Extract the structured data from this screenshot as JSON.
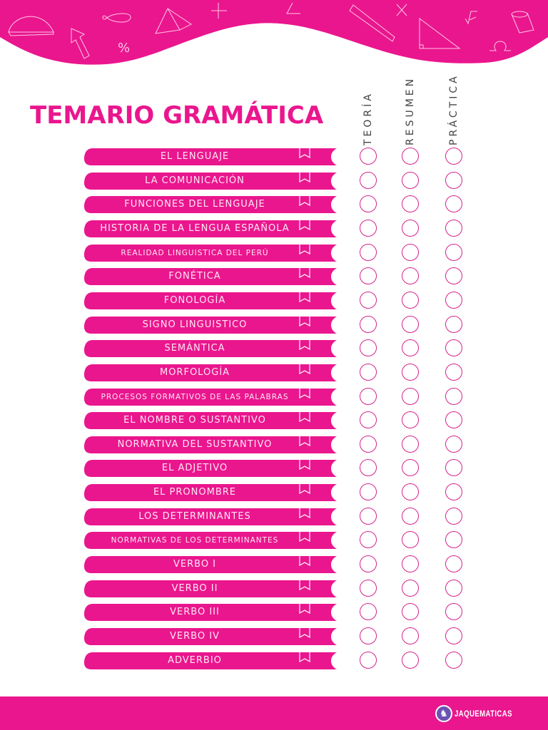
{
  "document": {
    "title": "TEMARIO GRAMÁTICA",
    "columns": [
      "TEORÍA",
      "RESUMEN",
      "PRÁCTICA"
    ],
    "topics": [
      {
        "label": "EL LENGUAJE",
        "small": false
      },
      {
        "label": "LA COMUNICACIÓN",
        "small": false
      },
      {
        "label": "FUNCIONES DEL LENGUAJE",
        "small": false
      },
      {
        "label": "HISTORIA DE LA LENGUA ESPAÑOLA",
        "small": false
      },
      {
        "label": "REALIDAD LINGUISTICA DEL PERÚ",
        "small": true
      },
      {
        "label": "FONÉTICA",
        "small": false
      },
      {
        "label": "FONOLOGÍA",
        "small": false
      },
      {
        "label": "SIGNO LINGUISTICO",
        "small": false
      },
      {
        "label": "SEMÁNTICA",
        "small": false
      },
      {
        "label": "MORFOLOGÍA",
        "small": false
      },
      {
        "label": "PROCESOS FORMATIVOS DE LAS PALABRAS",
        "small": true
      },
      {
        "label": "EL NOMBRE O SUSTANTIVO",
        "small": false
      },
      {
        "label": "NORMATIVA DEL SUSTANTIVO",
        "small": false
      },
      {
        "label": "EL ADJETIVO",
        "small": false
      },
      {
        "label": "EL PRONOMBRE",
        "small": false
      },
      {
        "label": "LOS DETERMINANTES",
        "small": false
      },
      {
        "label": "NORMATIVAS DE LOS DETERMINANTES",
        "small": true
      },
      {
        "label": "VERBO I",
        "small": false
      },
      {
        "label": "VERBO II",
        "small": false
      },
      {
        "label": "VERBO III",
        "small": false
      },
      {
        "label": "VERBO IV",
        "small": false
      },
      {
        "label": "ADVERBIO",
        "small": false
      }
    ]
  },
  "header": {
    "decorations": [
      "protractor-icon",
      "arrow-icon",
      "infinity-icon",
      "percent-icon",
      "pyramid-icon",
      "plus-icon",
      "angle-icon",
      "pencil-icon",
      "times-icon",
      "right-triangle-icon",
      "square-root-icon",
      "cylinder-icon",
      "omega-icon"
    ]
  },
  "footer": {
    "brand": "JAQUEMATICAS",
    "logo_icon": "chess-knight-icon"
  },
  "colors": {
    "accent": "#ea168e",
    "circle_stroke": "#d4238f",
    "label_text": "#fde7f3",
    "column_text": "#444444",
    "logo_bg": "#6b52b3"
  }
}
